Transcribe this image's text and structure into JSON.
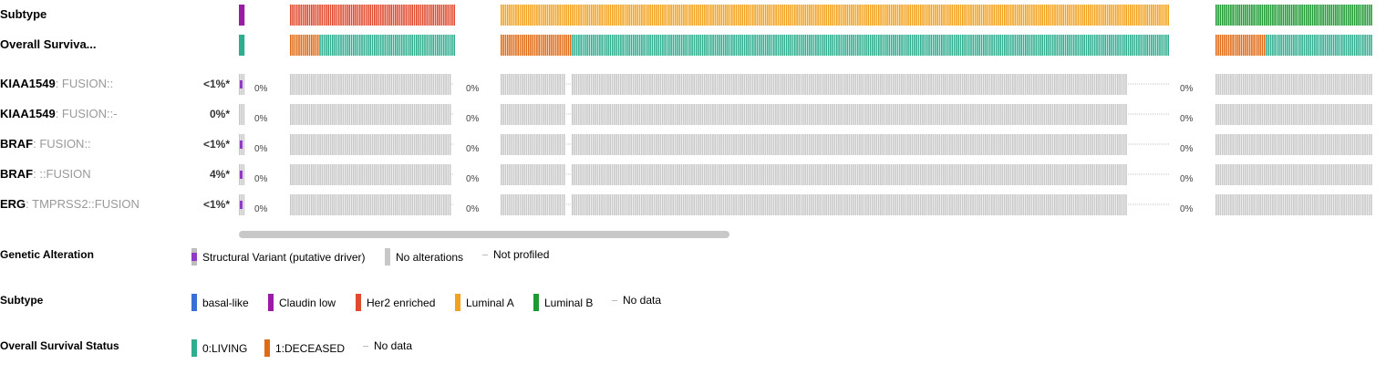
{
  "tracks": {
    "clinical": [
      {
        "label": "Subtype"
      },
      {
        "label": "Overall Surviva..."
      }
    ],
    "genes": [
      {
        "gene": "KIAA1549",
        "detail": ": FUSION::",
        "pct": "<1%*"
      },
      {
        "gene": "KIAA1549",
        "detail": ": FUSION::-",
        "pct": "0%*"
      },
      {
        "gene": "BRAF",
        "detail": ": FUSION::",
        "pct": "<1%*"
      },
      {
        "gene": "BRAF",
        "detail": ": ::FUSION",
        "pct": "4%*"
      },
      {
        "gene": "ERG",
        "detail": ": TMPRSS2::FUSION",
        "pct": "<1%*"
      }
    ],
    "zero_label": "0%"
  },
  "colors": {
    "structural_variant": "#8e3ac4",
    "no_alteration": "#c8c8c8",
    "basal_like": "#3a6fd6",
    "claudin_low": "#9b1aa6",
    "her2_enriched": "#e04a2e",
    "luminal_a": "#f3a21d",
    "luminal_b": "#1e9a33",
    "living": "#2fae8f",
    "deceased": "#e06b16"
  },
  "legend": {
    "genetic_alteration": {
      "title": "Genetic Alteration",
      "items": [
        "Structural Variant (putative driver)",
        "No alterations",
        "Not profiled"
      ]
    },
    "subtype": {
      "title": "Subtype",
      "items": [
        "basal-like",
        "Claudin low",
        "Her2 enriched",
        "Luminal A",
        "Luminal B",
        "No data"
      ]
    },
    "survival": {
      "title": "Overall Survival Status",
      "items": [
        "0:LIVING",
        "1:DECEASED",
        "No data"
      ]
    }
  }
}
